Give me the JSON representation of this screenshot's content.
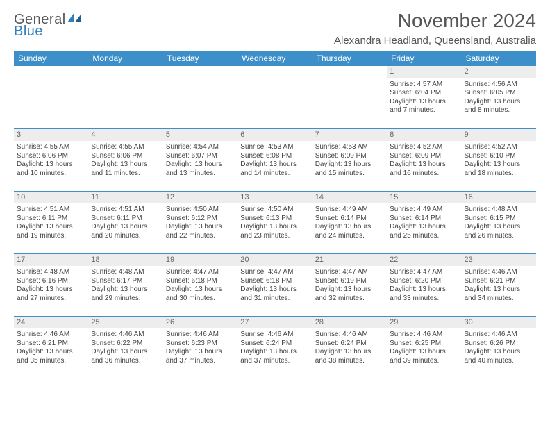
{
  "brand": {
    "word1": "General",
    "word2": "Blue"
  },
  "title": "November 2024",
  "location": "Alexandra Headland, Queensland, Australia",
  "colors": {
    "header_bar": "#3c8fc9",
    "daynum_bg": "#ededed",
    "rule": "#3c8fc9",
    "brand_blue": "#2f7fbf",
    "text": "#444444"
  },
  "day_headers": [
    "Sunday",
    "Monday",
    "Tuesday",
    "Wednesday",
    "Thursday",
    "Friday",
    "Saturday"
  ],
  "weeks": [
    [
      null,
      null,
      null,
      null,
      null,
      {
        "n": "1",
        "sunrise": "4:57 AM",
        "sunset": "6:04 PM",
        "daylight": "13 hours and 7 minutes."
      },
      {
        "n": "2",
        "sunrise": "4:56 AM",
        "sunset": "6:05 PM",
        "daylight": "13 hours and 8 minutes."
      }
    ],
    [
      {
        "n": "3",
        "sunrise": "4:55 AM",
        "sunset": "6:06 PM",
        "daylight": "13 hours and 10 minutes."
      },
      {
        "n": "4",
        "sunrise": "4:55 AM",
        "sunset": "6:06 PM",
        "daylight": "13 hours and 11 minutes."
      },
      {
        "n": "5",
        "sunrise": "4:54 AM",
        "sunset": "6:07 PM",
        "daylight": "13 hours and 13 minutes."
      },
      {
        "n": "6",
        "sunrise": "4:53 AM",
        "sunset": "6:08 PM",
        "daylight": "13 hours and 14 minutes."
      },
      {
        "n": "7",
        "sunrise": "4:53 AM",
        "sunset": "6:09 PM",
        "daylight": "13 hours and 15 minutes."
      },
      {
        "n": "8",
        "sunrise": "4:52 AM",
        "sunset": "6:09 PM",
        "daylight": "13 hours and 16 minutes."
      },
      {
        "n": "9",
        "sunrise": "4:52 AM",
        "sunset": "6:10 PM",
        "daylight": "13 hours and 18 minutes."
      }
    ],
    [
      {
        "n": "10",
        "sunrise": "4:51 AM",
        "sunset": "6:11 PM",
        "daylight": "13 hours and 19 minutes."
      },
      {
        "n": "11",
        "sunrise": "4:51 AM",
        "sunset": "6:11 PM",
        "daylight": "13 hours and 20 minutes."
      },
      {
        "n": "12",
        "sunrise": "4:50 AM",
        "sunset": "6:12 PM",
        "daylight": "13 hours and 22 minutes."
      },
      {
        "n": "13",
        "sunrise": "4:50 AM",
        "sunset": "6:13 PM",
        "daylight": "13 hours and 23 minutes."
      },
      {
        "n": "14",
        "sunrise": "4:49 AM",
        "sunset": "6:14 PM",
        "daylight": "13 hours and 24 minutes."
      },
      {
        "n": "15",
        "sunrise": "4:49 AM",
        "sunset": "6:14 PM",
        "daylight": "13 hours and 25 minutes."
      },
      {
        "n": "16",
        "sunrise": "4:48 AM",
        "sunset": "6:15 PM",
        "daylight": "13 hours and 26 minutes."
      }
    ],
    [
      {
        "n": "17",
        "sunrise": "4:48 AM",
        "sunset": "6:16 PM",
        "daylight": "13 hours and 27 minutes."
      },
      {
        "n": "18",
        "sunrise": "4:48 AM",
        "sunset": "6:17 PM",
        "daylight": "13 hours and 29 minutes."
      },
      {
        "n": "19",
        "sunrise": "4:47 AM",
        "sunset": "6:18 PM",
        "daylight": "13 hours and 30 minutes."
      },
      {
        "n": "20",
        "sunrise": "4:47 AM",
        "sunset": "6:18 PM",
        "daylight": "13 hours and 31 minutes."
      },
      {
        "n": "21",
        "sunrise": "4:47 AM",
        "sunset": "6:19 PM",
        "daylight": "13 hours and 32 minutes."
      },
      {
        "n": "22",
        "sunrise": "4:47 AM",
        "sunset": "6:20 PM",
        "daylight": "13 hours and 33 minutes."
      },
      {
        "n": "23",
        "sunrise": "4:46 AM",
        "sunset": "6:21 PM",
        "daylight": "13 hours and 34 minutes."
      }
    ],
    [
      {
        "n": "24",
        "sunrise": "4:46 AM",
        "sunset": "6:21 PM",
        "daylight": "13 hours and 35 minutes."
      },
      {
        "n": "25",
        "sunrise": "4:46 AM",
        "sunset": "6:22 PM",
        "daylight": "13 hours and 36 minutes."
      },
      {
        "n": "26",
        "sunrise": "4:46 AM",
        "sunset": "6:23 PM",
        "daylight": "13 hours and 37 minutes."
      },
      {
        "n": "27",
        "sunrise": "4:46 AM",
        "sunset": "6:24 PM",
        "daylight": "13 hours and 37 minutes."
      },
      {
        "n": "28",
        "sunrise": "4:46 AM",
        "sunset": "6:24 PM",
        "daylight": "13 hours and 38 minutes."
      },
      {
        "n": "29",
        "sunrise": "4:46 AM",
        "sunset": "6:25 PM",
        "daylight": "13 hours and 39 minutes."
      },
      {
        "n": "30",
        "sunrise": "4:46 AM",
        "sunset": "6:26 PM",
        "daylight": "13 hours and 40 minutes."
      }
    ]
  ],
  "labels": {
    "sunrise": "Sunrise: ",
    "sunset": "Sunset: ",
    "daylight": "Daylight: "
  }
}
